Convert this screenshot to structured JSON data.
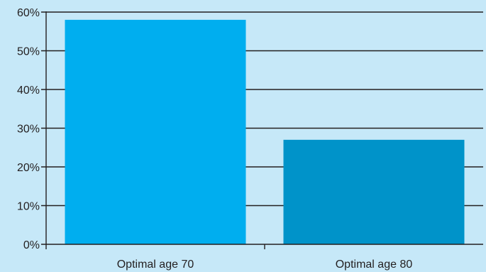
{
  "chart_data": {
    "type": "bar",
    "title": "",
    "xlabel": "",
    "ylabel": "",
    "categories": [
      "Optimal age 70",
      "Optimal age 80"
    ],
    "values": [
      58,
      27
    ],
    "ylim": [
      0,
      60
    ],
    "yticks": [
      0,
      10,
      20,
      30,
      40,
      50,
      60
    ],
    "ytick_labels": [
      "0%",
      "10%",
      "20%",
      "30%",
      "40%",
      "50%",
      "60%"
    ],
    "grid": true,
    "colors": {
      "background": "#c6e8f8",
      "bars": [
        "#00aeef",
        "#0093c9"
      ],
      "grid": "#231f20"
    }
  }
}
